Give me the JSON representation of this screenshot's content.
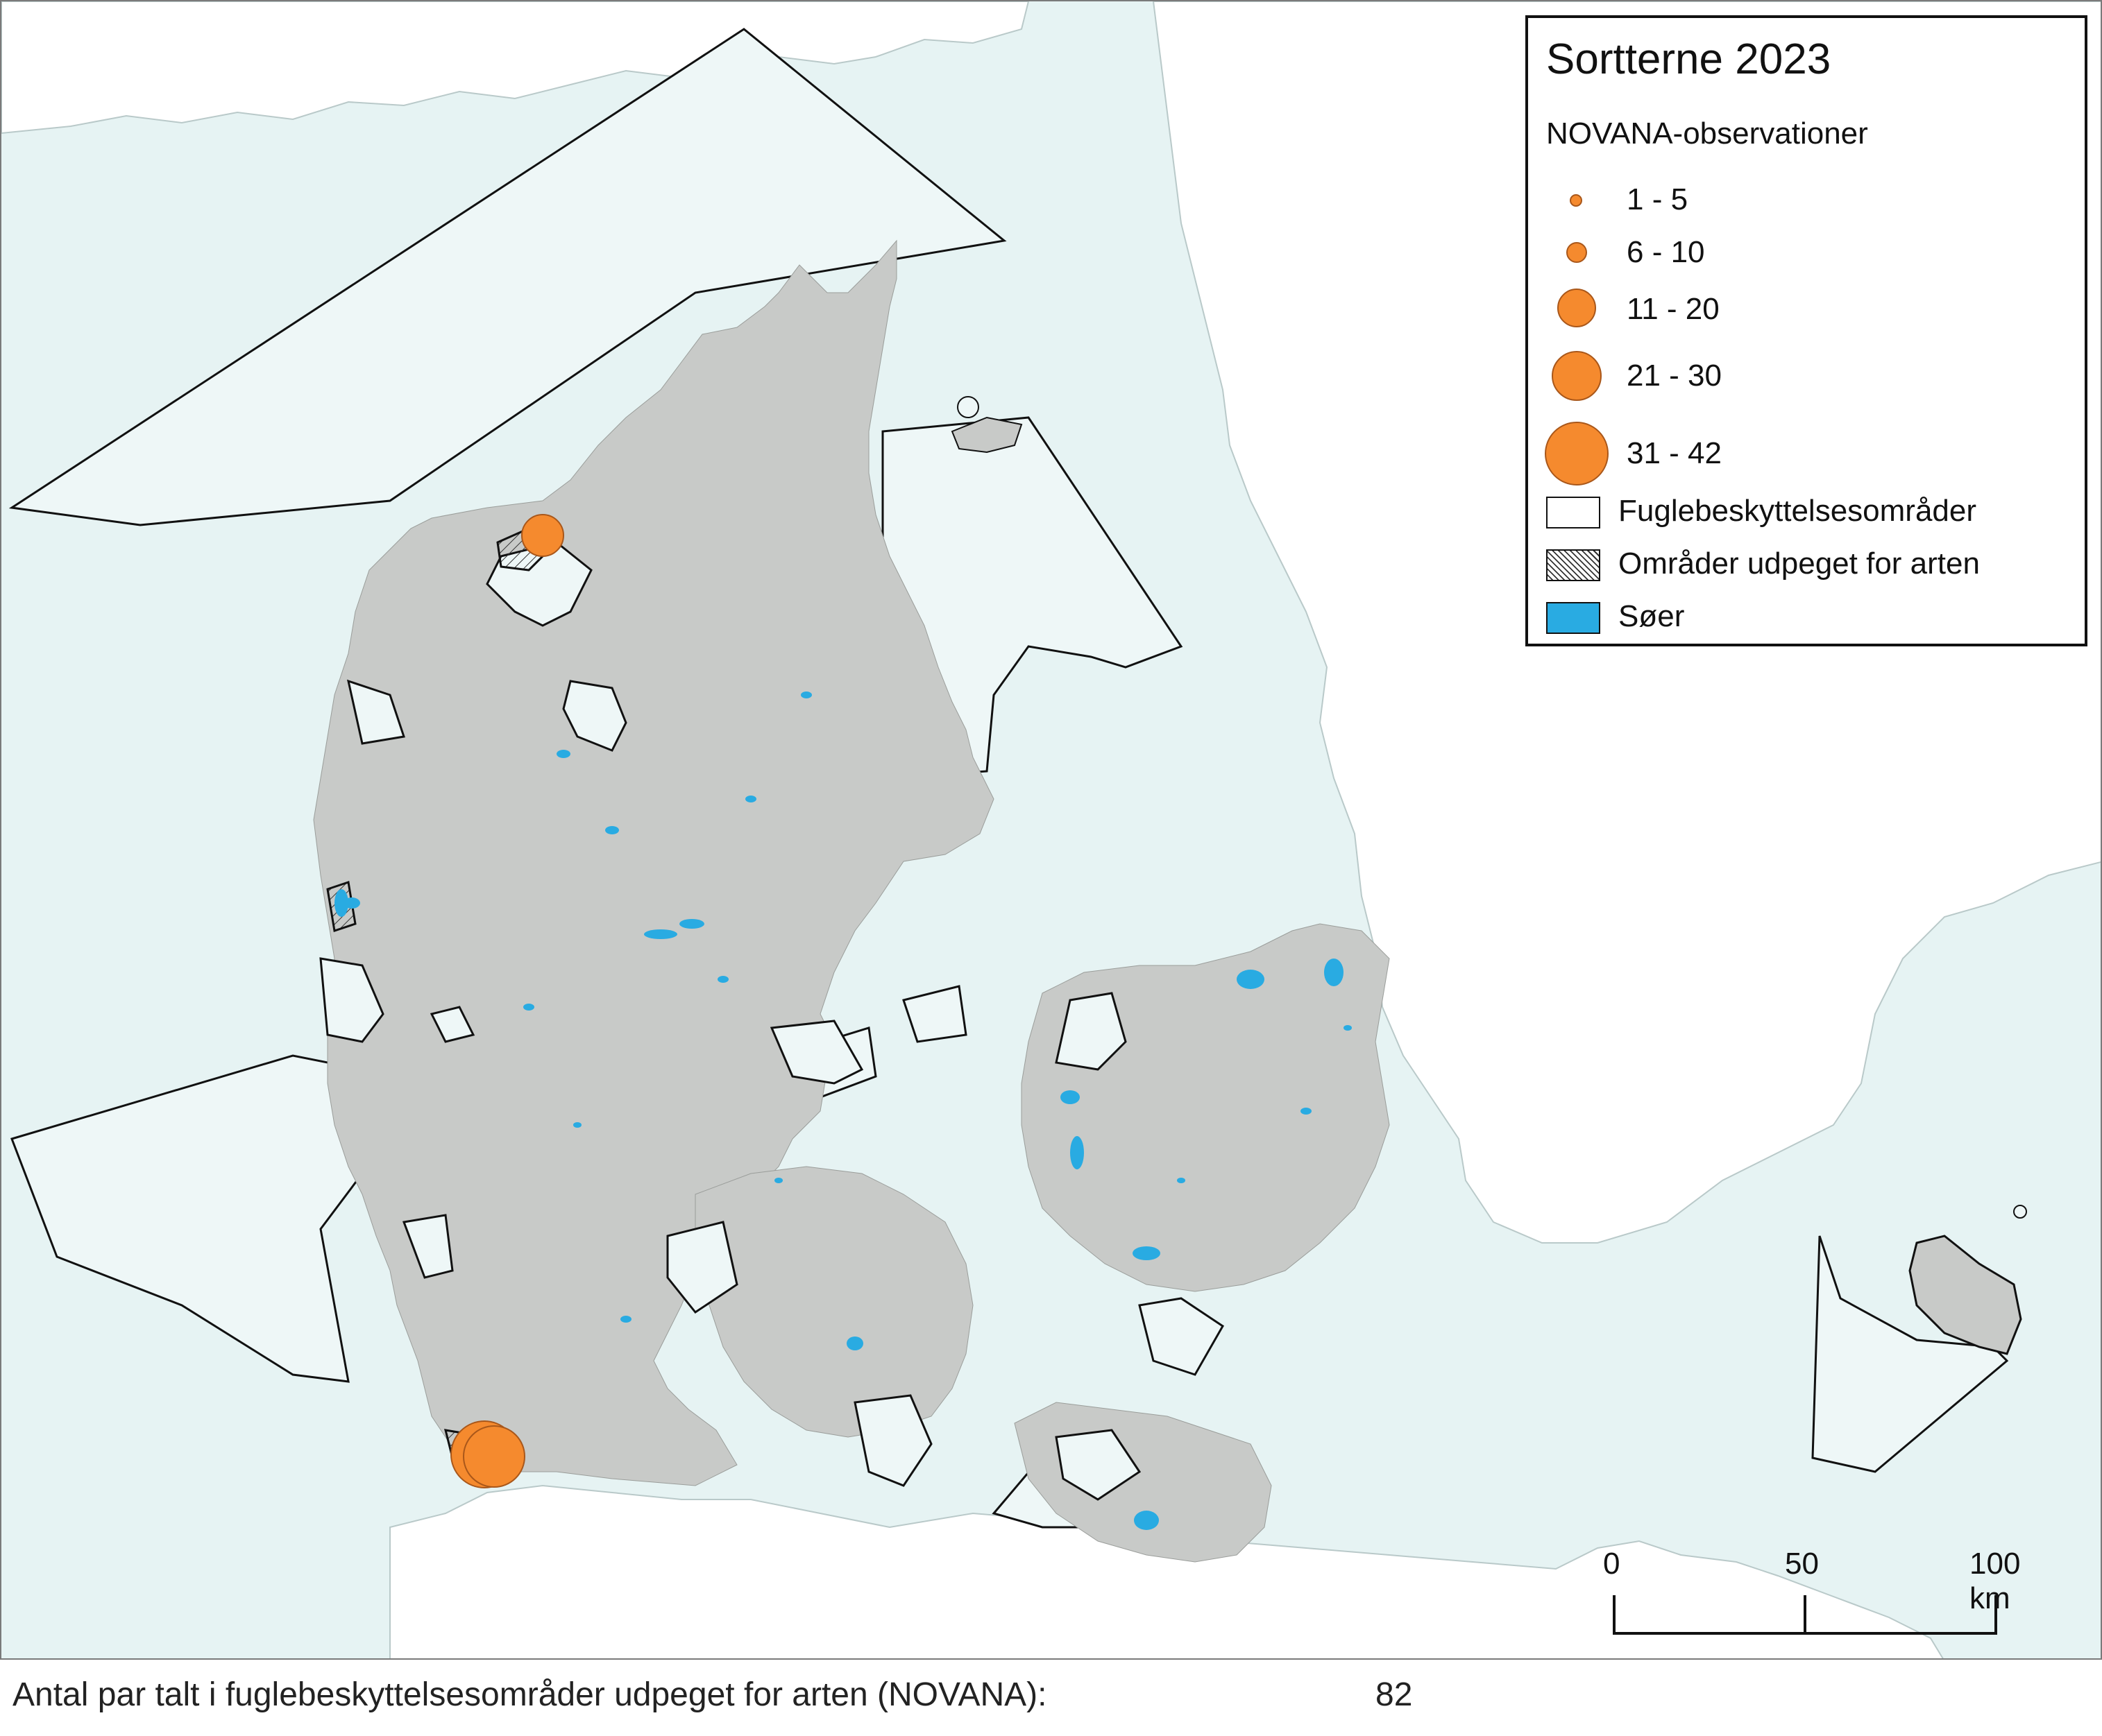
{
  "legend": {
    "title": "Sortterne 2023",
    "subtitle": "NOVANA-observationer",
    "size_classes": [
      {
        "label": "1 - 5"
      },
      {
        "label": "6 - 10"
      },
      {
        "label": "11 - 20"
      },
      {
        "label": "21 - 30"
      },
      {
        "label": "31 - 42"
      }
    ],
    "layers": [
      {
        "label": "Fuglebeskyttelsesområder",
        "style": "white-fill"
      },
      {
        "label": "Områder udpeget for arten",
        "style": "hatched"
      },
      {
        "label": "Søer",
        "style": "blue-fill",
        "color": "#29abe2"
      }
    ]
  },
  "scale_bar": {
    "ticks": [
      "0",
      "50",
      "100 km"
    ]
  },
  "colors": {
    "sea": "#e6f3f3",
    "land": "#c8cac8",
    "neighbor_land": "#ffffff",
    "observation": "#f58a2e",
    "lake": "#29abe2"
  },
  "footer": {
    "label": "Antal par talt i fuglebeskyttelsesområder udpeget for arten (NOVANA):",
    "value": "82"
  }
}
